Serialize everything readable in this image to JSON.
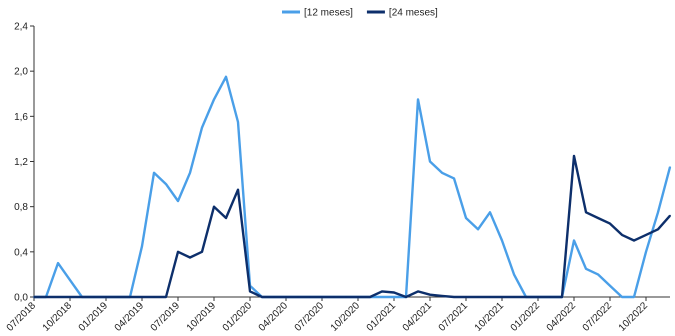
{
  "chart_data": {
    "type": "line",
    "title": "",
    "xlabel": "",
    "ylabel": "",
    "ylim": [
      0,
      2.4
    ],
    "yticks": [
      "0,0",
      "0,4",
      "0,8",
      "1,2",
      "1,6",
      "2,0",
      "2,4"
    ],
    "xlim": [
      "2018-07",
      "2022-12"
    ],
    "xticks": [
      "07/2018",
      "10/2018",
      "01/2019",
      "04/2019",
      "07/2019",
      "10/2019",
      "01/2020",
      "04/2020",
      "07/2020",
      "10/2020",
      "01/2021",
      "04/2021",
      "07/2021",
      "10/2021",
      "01/2022",
      "04/2022",
      "07/2022",
      "10/2022"
    ],
    "grid": false,
    "legend_position": "top-center",
    "series": [
      {
        "name": "[12 meses]",
        "color": "#4a9fe8",
        "x": [
          "2018-07",
          "2018-08",
          "2018-09",
          "2018-10",
          "2018-11",
          "2018-12",
          "2019-01",
          "2019-02",
          "2019-03",
          "2019-04",
          "2019-05",
          "2019-06",
          "2019-07",
          "2019-08",
          "2019-09",
          "2019-10",
          "2019-11",
          "2019-12",
          "2020-01",
          "2020-02",
          "2020-03",
          "2020-04",
          "2020-05",
          "2020-06",
          "2020-07",
          "2020-08",
          "2020-09",
          "2020-10",
          "2020-11",
          "2020-12",
          "2021-01",
          "2021-02",
          "2021-03",
          "2021-04",
          "2021-05",
          "2021-06",
          "2021-07",
          "2021-08",
          "2021-09",
          "2021-10",
          "2021-11",
          "2021-12",
          "2022-01",
          "2022-02",
          "2022-03",
          "2022-04",
          "2022-05",
          "2022-06",
          "2022-07",
          "2022-08",
          "2022-09",
          "2022-10",
          "2022-11",
          "2022-12"
        ],
        "values": [
          0.0,
          0.0,
          0.3,
          0.15,
          0.0,
          0.0,
          0.0,
          0.0,
          0.0,
          0.45,
          1.1,
          1.0,
          0.85,
          1.1,
          1.5,
          1.75,
          1.95,
          1.55,
          0.1,
          0.0,
          0.0,
          0.0,
          0.0,
          0.0,
          0.0,
          0.0,
          0.0,
          0.0,
          0.0,
          0.0,
          0.0,
          0.0,
          1.75,
          1.2,
          1.1,
          1.05,
          0.7,
          0.6,
          0.75,
          0.5,
          0.2,
          0.0,
          0.0,
          0.0,
          0.0,
          0.5,
          0.25,
          0.2,
          0.1,
          0.0,
          0.0,
          0.4,
          0.75,
          1.15
        ]
      },
      {
        "name": "[24 meses]",
        "color": "#0d2f6b",
        "x": [
          "2018-07",
          "2018-08",
          "2018-09",
          "2018-10",
          "2018-11",
          "2018-12",
          "2019-01",
          "2019-02",
          "2019-03",
          "2019-04",
          "2019-05",
          "2019-06",
          "2019-07",
          "2019-08",
          "2019-09",
          "2019-10",
          "2019-11",
          "2019-12",
          "2020-01",
          "2020-02",
          "2020-03",
          "2020-04",
          "2020-05",
          "2020-06",
          "2020-07",
          "2020-08",
          "2020-09",
          "2020-10",
          "2020-11",
          "2020-12",
          "2021-01",
          "2021-02",
          "2021-03",
          "2021-04",
          "2021-05",
          "2021-06",
          "2021-07",
          "2021-08",
          "2021-09",
          "2021-10",
          "2021-11",
          "2021-12",
          "2022-01",
          "2022-02",
          "2022-03",
          "2022-04",
          "2022-05",
          "2022-06",
          "2022-07",
          "2022-08",
          "2022-09",
          "2022-10",
          "2022-11",
          "2022-12"
        ],
        "values": [
          0.0,
          0.0,
          0.0,
          0.0,
          0.0,
          0.0,
          0.0,
          0.0,
          0.0,
          0.0,
          0.0,
          0.0,
          0.4,
          0.35,
          0.4,
          0.8,
          0.7,
          0.95,
          0.05,
          0.0,
          0.0,
          0.0,
          0.0,
          0.0,
          0.0,
          0.0,
          0.0,
          0.0,
          0.0,
          0.05,
          0.04,
          0.0,
          0.05,
          0.02,
          0.01,
          0.0,
          0.0,
          0.0,
          0.0,
          0.0,
          0.0,
          0.0,
          0.0,
          0.0,
          0.0,
          1.25,
          0.75,
          0.7,
          0.65,
          0.55,
          0.5,
          0.55,
          0.6,
          0.72
        ]
      }
    ]
  }
}
